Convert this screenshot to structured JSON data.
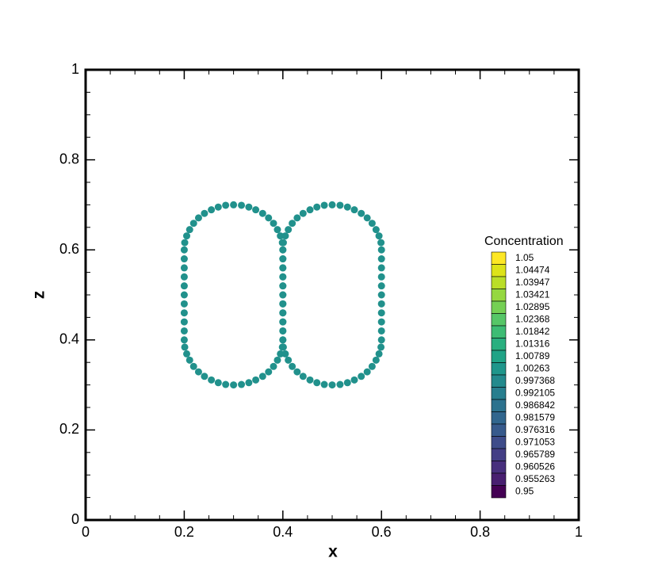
{
  "chart_data": {
    "type": "scatter",
    "xlabel": "x",
    "ylabel": "z",
    "xlim": [
      0,
      1
    ],
    "ylim": [
      0,
      1
    ],
    "xticks": [
      0,
      0.2,
      0.4,
      0.6,
      0.8,
      1
    ],
    "yticks": [
      0,
      0.2,
      0.4,
      0.6,
      0.8,
      1
    ],
    "xminorticks": [
      0.05,
      0.1,
      0.15,
      0.25,
      0.3,
      0.35,
      0.45,
      0.5,
      0.55,
      0.65,
      0.7,
      0.75,
      0.85,
      0.9,
      0.95
    ],
    "yminorticks": [
      0.05,
      0.1,
      0.15,
      0.25,
      0.3,
      0.35,
      0.45,
      0.5,
      0.55,
      0.65,
      0.7,
      0.75,
      0.85,
      0.9,
      0.95
    ],
    "color": "#21918c",
    "x": [
      0.4,
      0.399,
      0.395,
      0.389,
      0.381,
      0.371,
      0.359,
      0.345,
      0.331,
      0.316,
      0.3,
      0.284,
      0.269,
      0.255,
      0.241,
      0.229,
      0.219,
      0.211,
      0.205,
      0.201,
      0.2,
      0.2,
      0.2,
      0.2,
      0.2,
      0.2,
      0.2,
      0.2,
      0.2,
      0.2,
      0.2,
      0.201,
      0.205,
      0.211,
      0.219,
      0.229,
      0.241,
      0.255,
      0.269,
      0.284,
      0.3,
      0.316,
      0.331,
      0.345,
      0.359,
      0.371,
      0.381,
      0.389,
      0.395,
      0.399,
      0.4,
      0.4,
      0.4,
      0.4,
      0.4,
      0.4,
      0.4,
      0.4,
      0.4,
      0.4,
      0.6,
      0.599,
      0.595,
      0.589,
      0.581,
      0.571,
      0.559,
      0.545,
      0.531,
      0.516,
      0.5,
      0.484,
      0.469,
      0.455,
      0.441,
      0.429,
      0.419,
      0.411,
      0.405,
      0.401,
      0.4,
      0.4,
      0.4,
      0.4,
      0.4,
      0.4,
      0.4,
      0.4,
      0.4,
      0.4,
      0.4,
      0.401,
      0.405,
      0.411,
      0.419,
      0.429,
      0.441,
      0.455,
      0.469,
      0.484,
      0.5,
      0.516,
      0.531,
      0.545,
      0.559,
      0.571,
      0.581,
      0.589,
      0.595,
      0.599,
      0.6,
      0.6,
      0.6,
      0.6,
      0.6,
      0.6,
      0.6,
      0.6,
      0.6,
      0.6
    ],
    "values": [
      0.6,
      0.616,
      0.631,
      0.645,
      0.659,
      0.671,
      0.681,
      0.689,
      0.695,
      0.699,
      0.7,
      0.699,
      0.695,
      0.689,
      0.681,
      0.671,
      0.659,
      0.645,
      0.631,
      0.616,
      0.6,
      0.58,
      0.56,
      0.54,
      0.52,
      0.5,
      0.48,
      0.46,
      0.44,
      0.42,
      0.4,
      0.384,
      0.369,
      0.355,
      0.341,
      0.329,
      0.319,
      0.311,
      0.305,
      0.301,
      0.3,
      0.301,
      0.305,
      0.311,
      0.319,
      0.329,
      0.341,
      0.355,
      0.369,
      0.384,
      0.4,
      0.42,
      0.44,
      0.46,
      0.48,
      0.5,
      0.52,
      0.54,
      0.56,
      0.58,
      0.6,
      0.616,
      0.631,
      0.645,
      0.659,
      0.671,
      0.681,
      0.689,
      0.695,
      0.699,
      0.7,
      0.699,
      0.695,
      0.689,
      0.681,
      0.671,
      0.659,
      0.645,
      0.631,
      0.616,
      0.6,
      0.58,
      0.56,
      0.54,
      0.52,
      0.5,
      0.48,
      0.46,
      0.44,
      0.42,
      0.4,
      0.384,
      0.369,
      0.355,
      0.341,
      0.329,
      0.319,
      0.311,
      0.305,
      0.301,
      0.3,
      0.301,
      0.305,
      0.311,
      0.319,
      0.329,
      0.341,
      0.355,
      0.369,
      0.384,
      0.4,
      0.42,
      0.44,
      0.46,
      0.48,
      0.5,
      0.52,
      0.54,
      0.56,
      0.58
    ],
    "colorbar": {
      "title": "Concentration",
      "levels": [
        1.05,
        1.04474,
        1.03947,
        1.03421,
        1.02895,
        1.02368,
        1.01842,
        1.01316,
        1.00789,
        1.00263,
        0.997368,
        0.992105,
        0.986842,
        0.981579,
        0.976316,
        0.971053,
        0.965789,
        0.960526,
        0.955263,
        0.95
      ],
      "colors": [
        "#fde725",
        "#dde318",
        "#bade28",
        "#95d840",
        "#75d054",
        "#56c667",
        "#3dbc74",
        "#29af7f",
        "#20a386",
        "#1f968b",
        "#238a8d",
        "#277e8e",
        "#2c728e",
        "#31668e",
        "#375a8c",
        "#3e4c8a",
        "#433e85",
        "#472f7d",
        "#481f70",
        "#440154"
      ]
    }
  }
}
